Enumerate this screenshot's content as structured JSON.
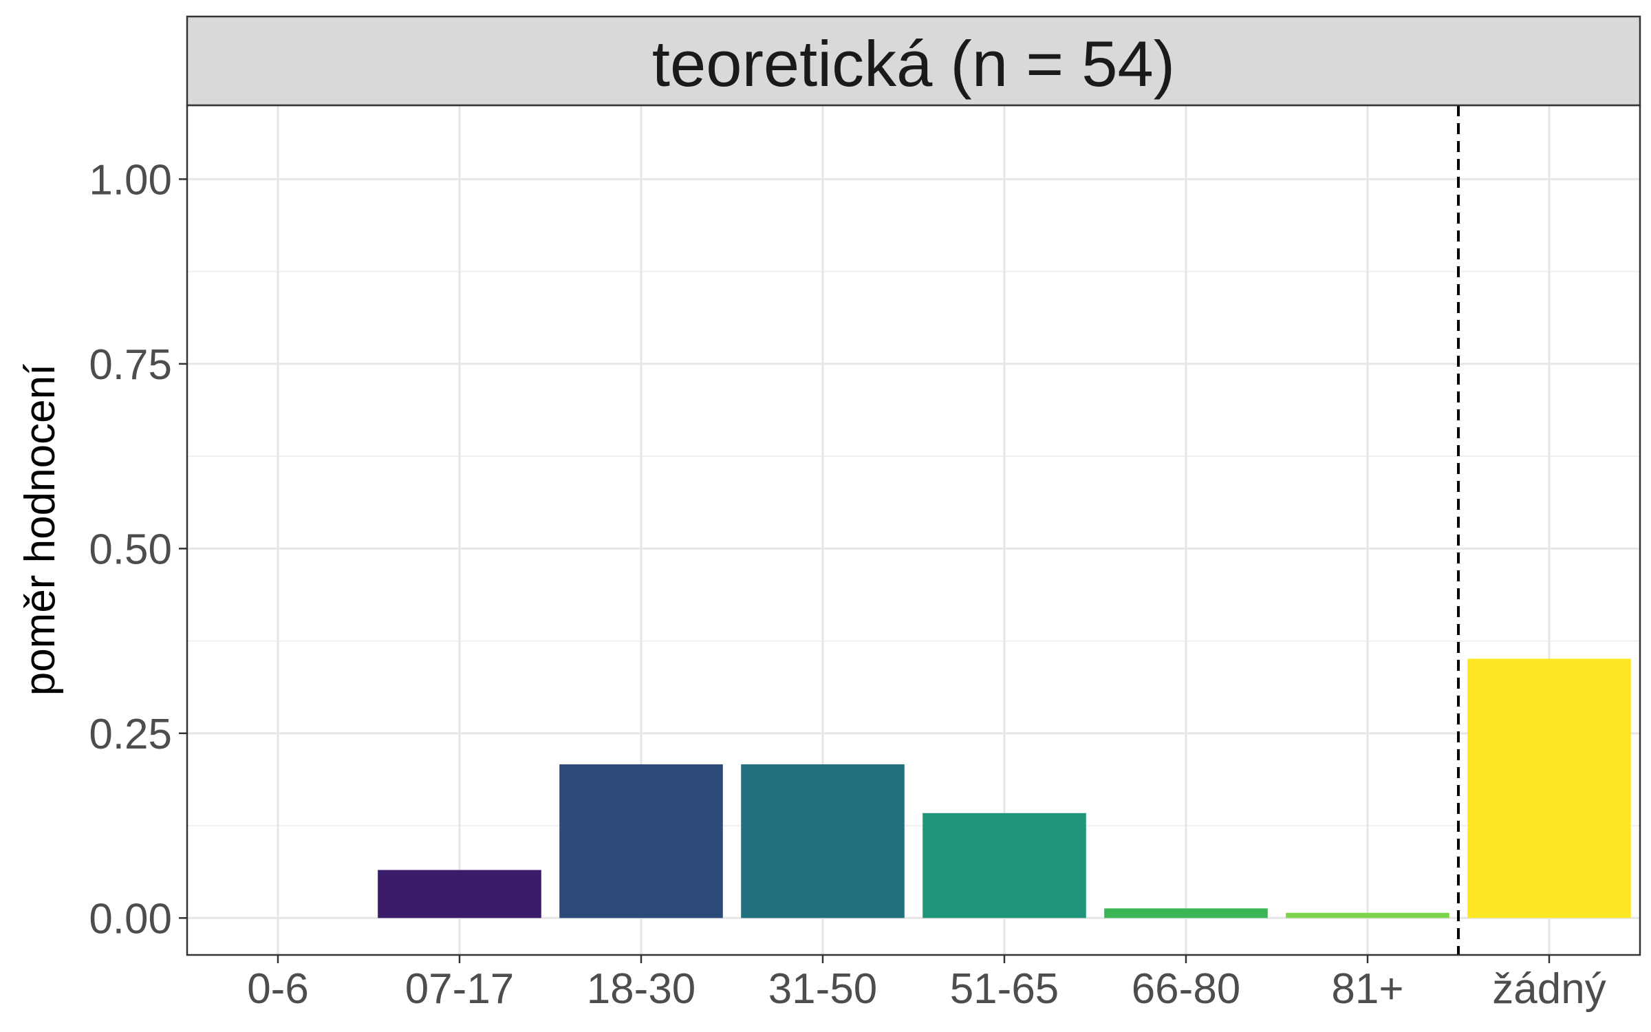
{
  "chart_data": {
    "type": "bar",
    "panel_title": "teoretická (n = 54)",
    "xlabel": "",
    "ylabel": "poměr hodnocení",
    "categories": [
      "0-6",
      "07-17",
      "18-30",
      "31-50",
      "51-65",
      "66-80",
      "81+",
      "žádný"
    ],
    "values": [
      0.0,
      0.065,
      0.208,
      0.208,
      0.142,
      0.013,
      0.007,
      0.351
    ],
    "colors": [
      "#440154",
      "#3b1c6b",
      "#2c4a7a",
      "#21707e",
      "#20957a",
      "#3bb555",
      "#7ed44a",
      "#fde725"
    ],
    "ylim": [
      -0.05,
      1.1
    ],
    "yticks": [
      0.0,
      0.25,
      0.5,
      0.75,
      1.0
    ],
    "ytick_labels": [
      "0.00",
      "0.25",
      "0.50",
      "0.75",
      "1.00"
    ],
    "separator_between": [
      "81+",
      "žádný"
    ],
    "grid": true,
    "legend": "none"
  }
}
